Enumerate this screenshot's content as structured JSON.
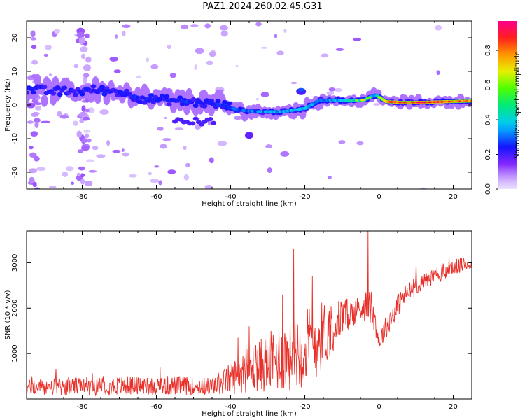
{
  "title": "PAZ1.2024.260.02.45.G31",
  "chart_data": [
    {
      "type": "heatmap",
      "xlabel": "Height of straight line (km)",
      "ylabel": "Frequency (Hz)",
      "xlim": [
        -95,
        25
      ],
      "ylim": [
        -25,
        25
      ],
      "xticks": [
        -80,
        -60,
        -40,
        -20,
        0,
        20
      ],
      "yticks": [
        -20,
        -10,
        0,
        10,
        20
      ],
      "colorbar": {
        "label": "Normalized spectral amplitude",
        "range": [
          0,
          0.97
        ],
        "ticks": [
          0.0,
          0.2,
          0.4,
          0.6,
          0.8
        ]
      },
      "ridge": {
        "name": "dominant frequency track",
        "x": [
          -93,
          -88,
          -82,
          -76,
          -70,
          -64,
          -58,
          -52,
          -46,
          -42,
          -38,
          -32,
          -26,
          -20,
          -16,
          -12,
          -8,
          -4,
          -1,
          2,
          6,
          12,
          18,
          25
        ],
        "y": [
          4.5,
          4,
          4,
          4.5,
          4,
          2,
          1.5,
          1,
          0.5,
          0,
          -1.5,
          -2,
          -2,
          -1,
          1.5,
          1.5,
          1.2,
          1.5,
          3,
          1,
          0.8,
          0.8,
          1,
          1.2
        ],
        "peak_amplitude": [
          0.2,
          0.22,
          0.22,
          0.3,
          0.3,
          0.35,
          0.3,
          0.35,
          0.3,
          0.35,
          0.4,
          0.45,
          0.5,
          0.5,
          0.45,
          0.5,
          0.55,
          0.7,
          0.5,
          0.85,
          0.9,
          0.95,
          0.9,
          0.85
        ]
      }
    },
    {
      "type": "line",
      "xlabel": "Height of straight line (km)",
      "ylabel": "SNR (10 * v/v)",
      "xlim": [
        -95,
        25
      ],
      "ylim": [
        0,
        3700
      ],
      "xticks": [
        -80,
        -60,
        -40,
        -20,
        0,
        20
      ],
      "yticks": [
        1000,
        2000,
        3000
      ],
      "series": [
        {
          "color": "#e8302a",
          "envelope_x": [
            -95,
            -80,
            -60,
            -45,
            -40,
            -35,
            -30,
            -25,
            -22,
            -18,
            -14,
            -10,
            -6,
            -3,
            -1,
            0,
            2,
            6,
            10,
            15,
            20,
            25
          ],
          "envelope_mean": [
            250,
            280,
            300,
            280,
            450,
            650,
            800,
            950,
            1100,
            1200,
            1500,
            1800,
            1950,
            2100,
            1700,
            1250,
            1600,
            2200,
            2500,
            2700,
            2900,
            3000
          ],
          "envelope_amp": [
            180,
            200,
            220,
            200,
            350,
            500,
            650,
            800,
            900,
            900,
            700,
            400,
            300,
            350,
            300,
            200,
            250,
            250,
            200,
            200,
            180,
            150
          ],
          "spikes": [
            [
              -38,
              1350
            ],
            [
              -35,
              1600
            ],
            [
              -23,
              3300
            ],
            [
              -3,
              3700
            ],
            [
              -18,
              2700
            ],
            [
              -26,
              2300
            ]
          ]
        }
      ]
    }
  ]
}
